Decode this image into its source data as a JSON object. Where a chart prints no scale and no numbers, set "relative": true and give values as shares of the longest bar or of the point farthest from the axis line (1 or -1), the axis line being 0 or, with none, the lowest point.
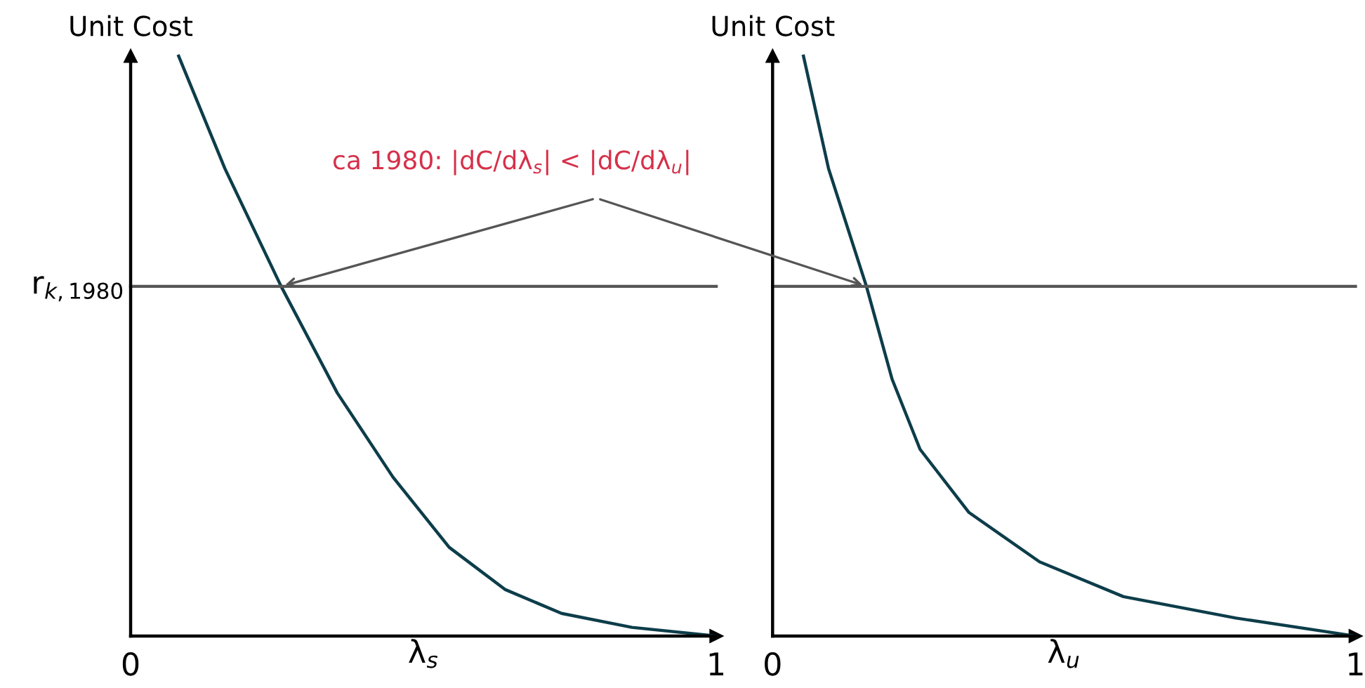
{
  "chart_data": [
    {
      "type": "line",
      "relative": true,
      "ylabel": "Unit Cost",
      "xlabel": "λ$_{s}$",
      "xlim": [
        0,
        1
      ],
      "xticks": [
        0,
        1
      ],
      "grid": false,
      "legend": false,
      "marker": "none",
      "line_style": "solid",
      "series": [
        {
          "color": "#0d3d4a",
          "x": [
            0.082,
            0.161,
            0.257,
            0.353,
            0.448,
            0.544,
            0.64,
            0.736,
            0.856,
            1
          ],
          "values": [
            1,
            0.806,
            0.603,
            0.419,
            0.274,
            0.153,
            0.08,
            0.039,
            0.015,
            0
          ]
        }
      ],
      "ref_lines": [
        {
          "axis": "y",
          "value": 0.603,
          "label": "r$_{k,1980}$",
          "color": "#555555"
        }
      ],
      "annotations": [
        "ca 1980: |dC/dλ$_{s}$| < |dC/dλ$_{u}$|"
      ]
    },
    {
      "type": "line",
      "relative": true,
      "ylabel": "Unit Cost",
      "xlabel": "λ$_{u}$",
      "xlim": [
        0,
        1
      ],
      "xticks": [
        0,
        1
      ],
      "grid": false,
      "legend": false,
      "marker": "none",
      "line_style": "solid",
      "series": [
        {
          "color": "#0d3d4a",
          "x": [
            0.053,
            0.096,
            0.161,
            0.205,
            0.253,
            0.337,
            0.458,
            0.602,
            0.795,
            1
          ],
          "values": [
            1,
            0.806,
            0.603,
            0.443,
            0.322,
            0.213,
            0.128,
            0.068,
            0.031,
            0
          ]
        }
      ],
      "ref_lines": [
        {
          "axis": "y",
          "value": 0.603,
          "color": "#555555"
        }
      ]
    }
  ]
}
